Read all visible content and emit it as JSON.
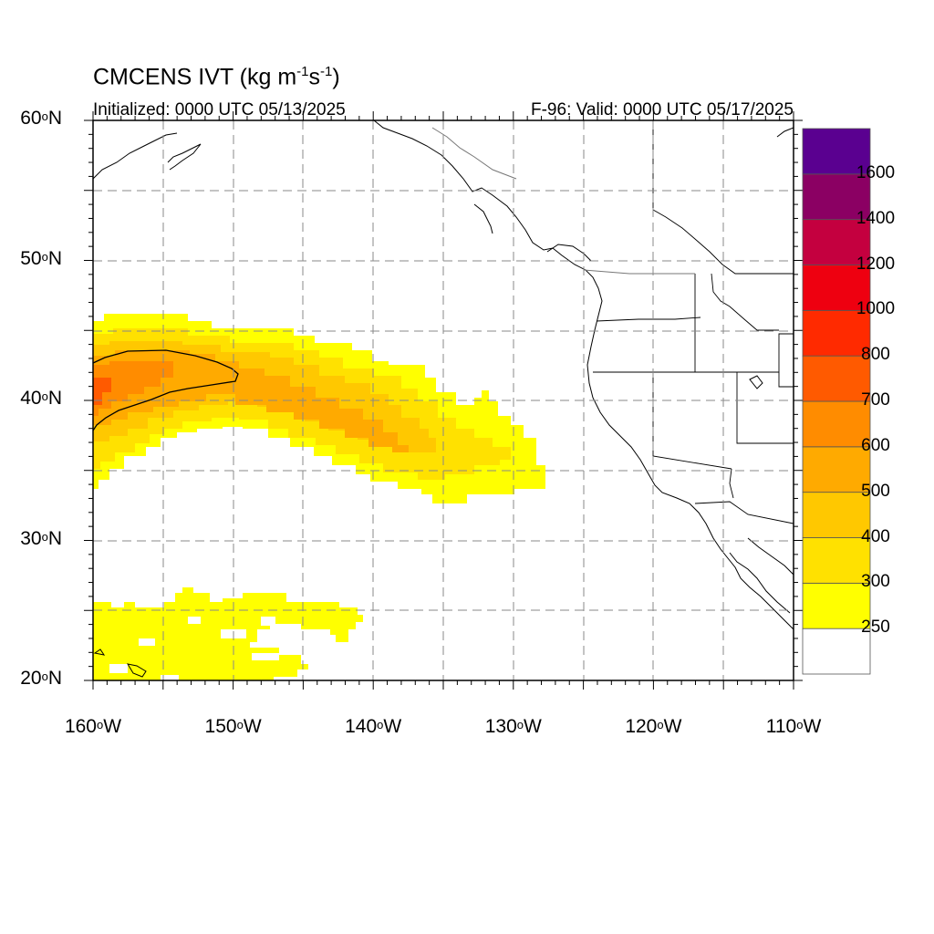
{
  "title": {
    "main": "CMCENS IVT (kg m",
    "sup1": "-1",
    "mid": "s",
    "sup2": "-1",
    "end": ")"
  },
  "subtitle_left": "Initialized: 0000 UTC 05/13/2025",
  "subtitle_right": "F-96: Valid: 0000 UTC 05/17/2025",
  "map": {
    "lon_range": [
      -160,
      -110
    ],
    "lat_range": [
      20,
      60
    ],
    "grid": "dashed",
    "lat_ticks": [
      {
        "value": 60,
        "num": "60",
        "deg": "o",
        "hemi": "N"
      },
      {
        "value": 50,
        "num": "50",
        "deg": "o",
        "hemi": "N"
      },
      {
        "value": 40,
        "num": "40",
        "deg": "o",
        "hemi": "N"
      },
      {
        "value": 30,
        "num": "30",
        "deg": "o",
        "hemi": "N"
      },
      {
        "value": 20,
        "num": "20",
        "deg": "o",
        "hemi": "N"
      }
    ],
    "lon_ticks": [
      {
        "value": -160,
        "num": "160",
        "deg": "o",
        "hemi": "W"
      },
      {
        "value": -150,
        "num": "150",
        "deg": "o",
        "hemi": "W"
      },
      {
        "value": -140,
        "num": "140",
        "deg": "o",
        "hemi": "W"
      },
      {
        "value": -130,
        "num": "130",
        "deg": "o",
        "hemi": "W"
      },
      {
        "value": -120,
        "num": "120",
        "deg": "o",
        "hemi": "W"
      },
      {
        "value": -110,
        "num": "110",
        "deg": "o",
        "hemi": "W"
      }
    ]
  },
  "colorbar": {
    "levels": [
      "250",
      "300",
      "400",
      "500",
      "600",
      "700",
      "800",
      "1000",
      "1200",
      "1400",
      "1600"
    ],
    "colors": [
      "#ffffff",
      "#ffff00",
      "#ffe100",
      "#ffc800",
      "#ffaa00",
      "#ff8c00",
      "#ff5a00",
      "#ff2a00",
      "#ee0010",
      "#c4003f",
      "#8b0063",
      "#5a0090"
    ]
  },
  "ivt_regions": [
    {
      "level": "250-300",
      "color": "#ffff00"
    },
    {
      "level": "300-400",
      "color": "#ffe100"
    },
    {
      "level": "400-500",
      "color": "#ffc800"
    },
    {
      "level": "500-600",
      "color": "#ffaa00"
    },
    {
      "level": "600-700",
      "color": "#ff8c00"
    },
    {
      "level": "700-800",
      "color": "#ff5a00"
    }
  ]
}
